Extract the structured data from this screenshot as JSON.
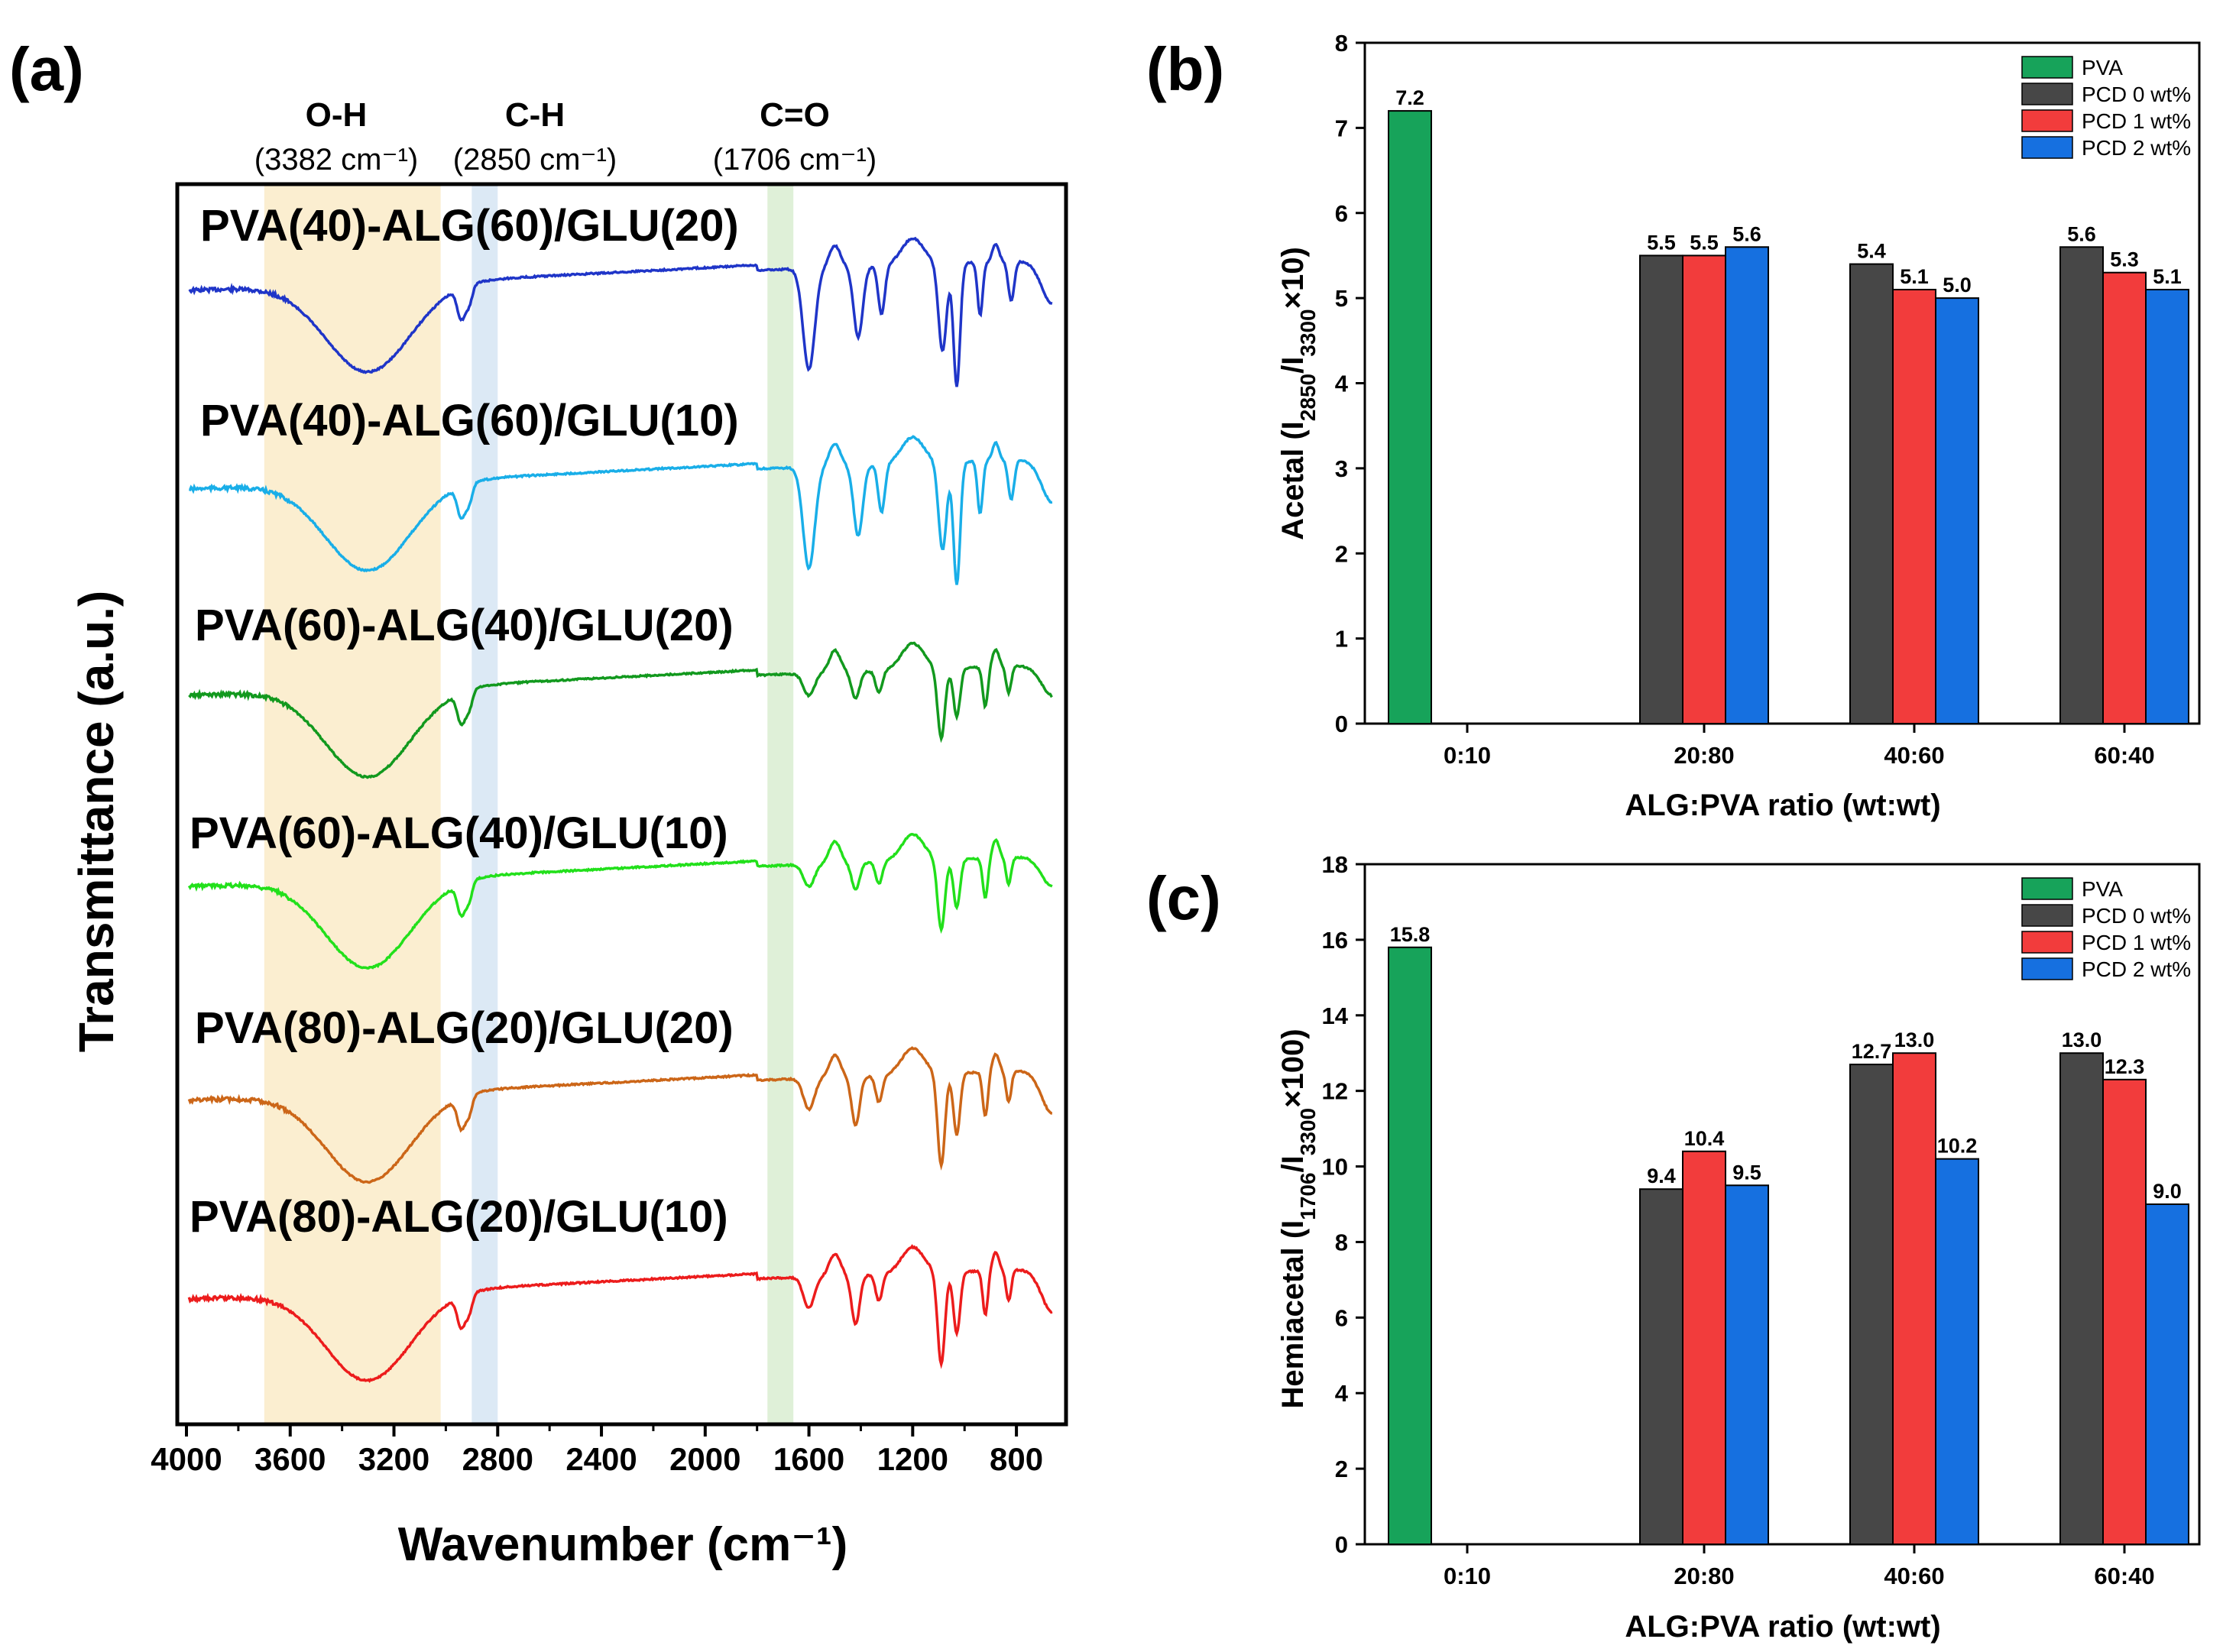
{
  "panels": {
    "a": {
      "label": "(a)",
      "chart_data": {
        "type": "line",
        "xlabel": "Wavenumber (cm⁻¹)",
        "ylabel": "Transmittance (a.u.)",
        "xlim": [
          4000,
          650
        ],
        "x_reversed": true,
        "xticks": [
          "4000",
          "3600",
          "3200",
          "2800",
          "2400",
          "2000",
          "1600",
          "1200",
          "800"
        ],
        "xtick_values": [
          4000,
          3600,
          3200,
          2800,
          2400,
          2000,
          1600,
          1200,
          800
        ],
        "bands": [
          {
            "name": "O-H",
            "position": "(3382 cm⁻¹)",
            "from": 3700,
            "to": 3020,
            "color": "#fbeed0"
          },
          {
            "name": "C-H",
            "position": "(2850 cm⁻¹)",
            "from": 2900,
            "to": 2800,
            "color": "#dce9f5"
          },
          {
            "name": "C=O",
            "position": "(1706 cm⁻¹)",
            "from": 1760,
            "to": 1660,
            "color": "#dff0d8"
          }
        ],
        "series": [
          {
            "name": "PVA(40)-ALG(60)/GLU(20)",
            "color": "#1f35c8",
            "profile": "high_alg"
          },
          {
            "name": "PVA(40)-ALG(60)/GLU(10)",
            "color": "#19aee8",
            "profile": "high_alg"
          },
          {
            "name": "PVA(60)-ALG(40)/GLU(20)",
            "color": "#12991e",
            "profile": "mid_alg"
          },
          {
            "name": "PVA(60)-ALG(40)/GLU(10)",
            "color": "#22e01b",
            "profile": "mid_alg"
          },
          {
            "name": "PVA(80)-ALG(20)/GLU(20)",
            "color": "#cc6618",
            "profile": "low_alg"
          },
          {
            "name": "PVA(80)-ALG(20)/GLU(10)",
            "color": "#ec1c1c",
            "profile": "low_alg"
          }
        ]
      }
    },
    "b": {
      "label": "(b)",
      "chart_data": {
        "type": "bar",
        "xlabel": "ALG:PVA ratio (wt:wt)",
        "ylabel_parts": [
          "Acetal (I",
          "2850",
          "/I",
          "3300",
          "×10)"
        ],
        "ylim": [
          0,
          8
        ],
        "yticks": [
          "0",
          "1",
          "2",
          "3",
          "4",
          "5",
          "6",
          "7",
          "8"
        ],
        "categories": [
          "0:10",
          "20:80",
          "40:60",
          "60:40"
        ],
        "series": [
          {
            "name": "PVA",
            "color": "#17a35a",
            "values": [
              7.2,
              null,
              null,
              null
            ],
            "labels": [
              "7.2",
              "",
              "",
              ""
            ]
          },
          {
            "name": "PCD 0 wt%",
            "color": "#474747",
            "values": [
              null,
              5.5,
              5.4,
              5.6
            ],
            "labels": [
              "",
              "5.5",
              "5.4",
              "5.6"
            ]
          },
          {
            "name": "PCD 1 wt%",
            "color": "#f23c3c",
            "values": [
              null,
              5.5,
              5.1,
              5.3
            ],
            "labels": [
              "",
              "5.5",
              "5.1",
              "5.3"
            ]
          },
          {
            "name": "PCD 2 wt%",
            "color": "#1670e0",
            "values": [
              null,
              5.6,
              5.0,
              5.1
            ],
            "labels": [
              "",
              "5.6",
              "5.0",
              "5.1"
            ]
          }
        ],
        "legend": "top-right"
      }
    },
    "c": {
      "label": "(c)",
      "chart_data": {
        "type": "bar",
        "xlabel": "ALG:PVA ratio (wt:wt)",
        "ylabel_parts": [
          "Hemiacetal (I",
          "1706",
          "/I",
          "3300",
          "×100)"
        ],
        "ylim": [
          0,
          18
        ],
        "yticks": [
          "0",
          "2",
          "4",
          "6",
          "8",
          "10",
          "12",
          "14",
          "16",
          "18"
        ],
        "categories": [
          "0:10",
          "20:80",
          "40:60",
          "60:40"
        ],
        "series": [
          {
            "name": "PVA",
            "color": "#17a35a",
            "values": [
              15.8,
              null,
              null,
              null
            ],
            "labels": [
              "15.8",
              "",
              "",
              ""
            ]
          },
          {
            "name": "PCD 0 wt%",
            "color": "#474747",
            "values": [
              null,
              9.4,
              12.7,
              13.0
            ],
            "labels": [
              "",
              "9.4",
              "12.7",
              "13.0"
            ]
          },
          {
            "name": "PCD 1 wt%",
            "color": "#f23c3c",
            "values": [
              null,
              10.4,
              13.0,
              12.3
            ],
            "labels": [
              "",
              "10.4",
              "13.0",
              "12.3"
            ]
          },
          {
            "name": "PCD 2 wt%",
            "color": "#1670e0",
            "values": [
              null,
              9.5,
              10.2,
              9.0
            ],
            "labels": [
              "",
              "9.5",
              "10.2",
              "9.0"
            ]
          }
        ],
        "legend": "top-right"
      }
    }
  }
}
